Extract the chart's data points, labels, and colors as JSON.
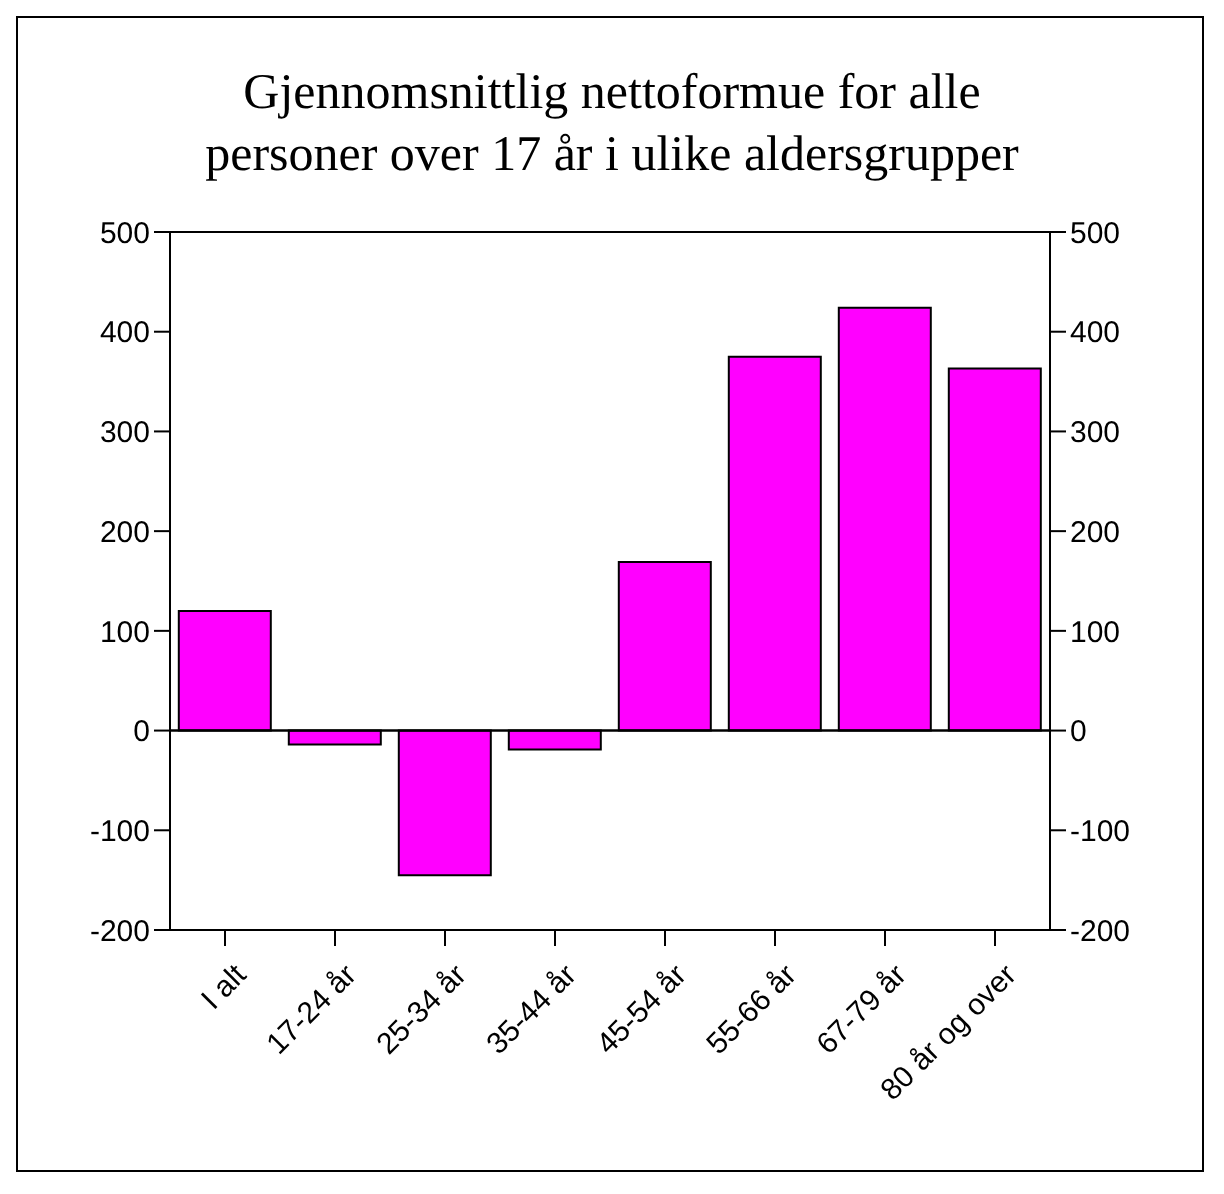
{
  "chart_data": {
    "type": "bar",
    "title": "Gjennomsnittlig nettoformue for alle\npersoner over 17 år i ulike aldersgrupper",
    "categories": [
      "I alt",
      "17-24 år",
      "25-34 år",
      "35-44 år",
      "45-54 år",
      "55-66 år",
      "67-79 år",
      "80 år og over"
    ],
    "values": [
      120,
      -14,
      -145,
      -19,
      169,
      375,
      424,
      363
    ],
    "color": "#ff00ff",
    "ylim": [
      -200,
      500
    ],
    "yticks": [
      -200,
      -100,
      0,
      100,
      200,
      300,
      400,
      500
    ],
    "y2lim": [
      -200,
      500
    ],
    "y2ticks": [
      -200,
      -100,
      0,
      100,
      200,
      300,
      400,
      500
    ]
  }
}
